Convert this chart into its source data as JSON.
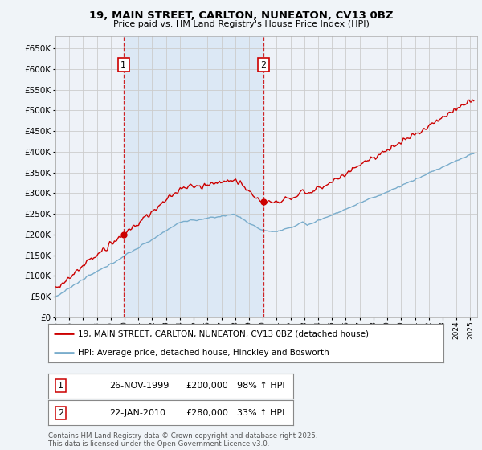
{
  "title_line1": "19, MAIN STREET, CARLTON, NUNEATON, CV13 0BZ",
  "title_line2": "Price paid vs. HM Land Registry's House Price Index (HPI)",
  "background_color": "#f0f4f8",
  "plot_bg_color": "#eef2f8",
  "shaded_region_color": "#dce8f5",
  "grid_color": "#cccccc",
  "red_color": "#cc0000",
  "blue_color": "#7aadcc",
  "ylim_max": 680000,
  "yticks": [
    0,
    50000,
    100000,
    150000,
    200000,
    250000,
    300000,
    350000,
    400000,
    450000,
    500000,
    550000,
    600000,
    650000
  ],
  "xlim_start": 1995.0,
  "xlim_end": 2025.5,
  "marker1_x": 1999.92,
  "marker1_y_data": 200000,
  "marker2_x": 2010.05,
  "marker2_y_data": 280000,
  "vline1_x": 1999.92,
  "vline2_x": 2010.05,
  "legend_line1": "19, MAIN STREET, CARLTON, NUNEATON, CV13 0BZ (detached house)",
  "legend_line2": "HPI: Average price, detached house, Hinckley and Bosworth",
  "table_row1_num": "1",
  "table_row1_date": "26-NOV-1999",
  "table_row1_price": "£200,000",
  "table_row1_hpi": "98% ↑ HPI",
  "table_row2_num": "2",
  "table_row2_date": "22-JAN-2010",
  "table_row2_price": "£280,000",
  "table_row2_hpi": "33% ↑ HPI",
  "footer": "Contains HM Land Registry data © Crown copyright and database right 2025.\nThis data is licensed under the Open Government Licence v3.0."
}
